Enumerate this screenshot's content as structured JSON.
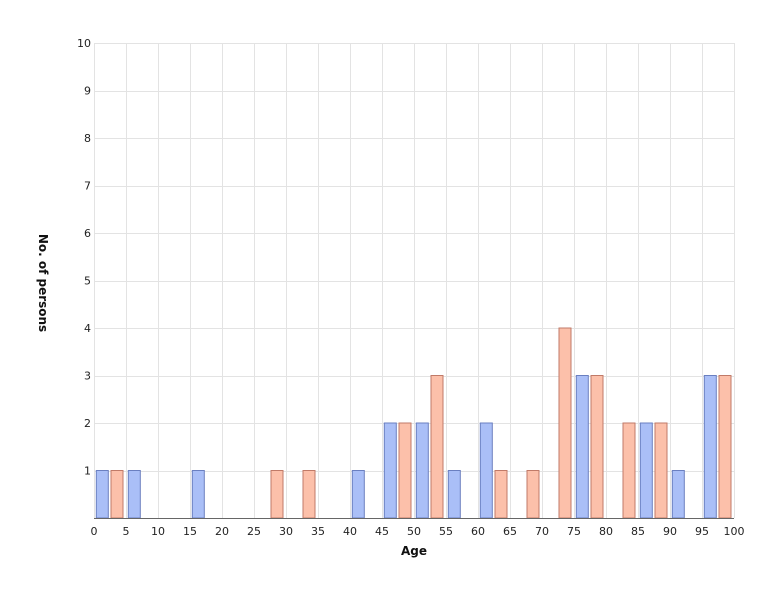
{
  "chart_data": {
    "type": "bar",
    "title": "",
    "xlabel": "Age",
    "ylabel": "No. of persons",
    "xlim": [
      0,
      100
    ],
    "ylim": [
      0,
      10
    ],
    "x_ticks": [
      "0",
      "5",
      "10",
      "15",
      "20",
      "25",
      "30",
      "35",
      "40",
      "45",
      "50",
      "55",
      "60",
      "65",
      "70",
      "75",
      "80",
      "85",
      "90",
      "95",
      "100"
    ],
    "y_ticks": [
      "1",
      "2",
      "3",
      "4",
      "5",
      "6",
      "7",
      "8",
      "9",
      "10"
    ],
    "grid": true,
    "colors": {
      "blue": "#aabff7",
      "blue_stroke": "#6a7fc0",
      "salmon": "#fcc0aa",
      "salmon_stroke": "#c07a68"
    },
    "bars": [
      {
        "x": 1.3,
        "value": 1,
        "color": "blue"
      },
      {
        "x": 3.6,
        "value": 1,
        "color": "salmon"
      },
      {
        "x": 6.3,
        "value": 1,
        "color": "blue"
      },
      {
        "x": 16.3,
        "value": 1,
        "color": "blue"
      },
      {
        "x": 28.6,
        "value": 1,
        "color": "salmon"
      },
      {
        "x": 33.6,
        "value": 1,
        "color": "salmon"
      },
      {
        "x": 41.3,
        "value": 1,
        "color": "blue"
      },
      {
        "x": 46.3,
        "value": 2,
        "color": "blue"
      },
      {
        "x": 48.6,
        "value": 2,
        "color": "salmon"
      },
      {
        "x": 51.3,
        "value": 2,
        "color": "blue"
      },
      {
        "x": 53.6,
        "value": 3,
        "color": "salmon"
      },
      {
        "x": 56.3,
        "value": 1,
        "color": "blue"
      },
      {
        "x": 61.3,
        "value": 2,
        "color": "blue"
      },
      {
        "x": 63.6,
        "value": 1,
        "color": "salmon"
      },
      {
        "x": 68.6,
        "value": 1,
        "color": "salmon"
      },
      {
        "x": 73.6,
        "value": 4,
        "color": "salmon"
      },
      {
        "x": 76.3,
        "value": 3,
        "color": "blue"
      },
      {
        "x": 78.6,
        "value": 3,
        "color": "salmon"
      },
      {
        "x": 83.6,
        "value": 2,
        "color": "salmon"
      },
      {
        "x": 86.3,
        "value": 2,
        "color": "blue"
      },
      {
        "x": 88.6,
        "value": 2,
        "color": "salmon"
      },
      {
        "x": 91.3,
        "value": 1,
        "color": "blue"
      },
      {
        "x": 96.3,
        "value": 3,
        "color": "blue"
      },
      {
        "x": 98.6,
        "value": 3,
        "color": "salmon"
      }
    ]
  }
}
